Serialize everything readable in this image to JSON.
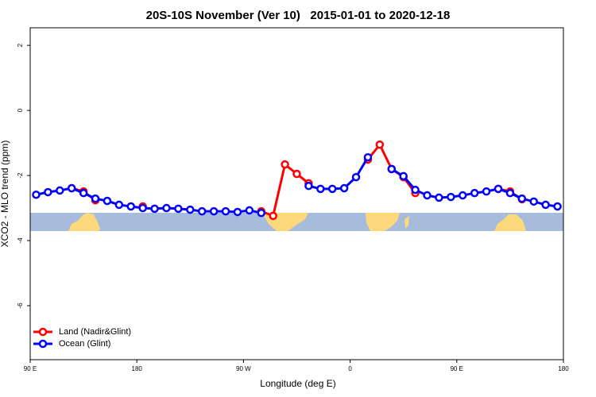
{
  "chart_data": {
    "type": "line",
    "title": "20S-10S November (Ver 10)   2015-01-01 to 2020-12-18",
    "xlabel": "Longitude (deg E)",
    "ylabel": "XCO2 - MLO trend (ppm)",
    "x": [
      95,
      105,
      115,
      125,
      135,
      145,
      155,
      165,
      175,
      185,
      195,
      205,
      215,
      225,
      235,
      245,
      255,
      265,
      275,
      285,
      295,
      305,
      315,
      325,
      335,
      345,
      355,
      365,
      375,
      385,
      395,
      405,
      415,
      425,
      435,
      445,
      455,
      465,
      475,
      485,
      495,
      505,
      515,
      525,
      535
    ],
    "series": [
      {
        "name": "Land (Nadir&Glint)",
        "color": "#ff0000",
        "values": [
          null,
          null,
          null,
          -2.39,
          -2.49,
          -2.76,
          null,
          null,
          null,
          -2.95,
          null,
          null,
          null,
          null,
          null,
          null,
          null,
          null,
          null,
          -3.1,
          -3.24,
          -1.66,
          -1.95,
          -2.24,
          null,
          null,
          null,
          null,
          -1.51,
          -1.05,
          -1.8,
          -2.05,
          -2.54,
          null,
          null,
          null,
          null,
          null,
          null,
          -2.41,
          -2.49,
          -2.73,
          null,
          null,
          null
        ]
      },
      {
        "name": "Ocean (Glint)",
        "color": "#0000ff",
        "values": [
          -2.59,
          -2.51,
          -2.46,
          -2.39,
          -2.54,
          -2.71,
          -2.78,
          -2.9,
          -2.95,
          -3.0,
          -3.02,
          -3.0,
          -3.02,
          -3.05,
          -3.1,
          -3.1,
          -3.1,
          -3.12,
          -3.07,
          -3.15,
          null,
          null,
          null,
          -2.32,
          -2.41,
          -2.41,
          -2.39,
          -2.05,
          -1.44,
          null,
          -1.8,
          -2.02,
          -2.44,
          -2.61,
          -2.68,
          -2.66,
          -2.61,
          -2.54,
          -2.49,
          -2.41,
          -2.54,
          -2.71,
          -2.8,
          -2.9,
          -2.95
        ]
      }
    ],
    "xlim": [
      90,
      540
    ],
    "xticks": [
      {
        "value": 90,
        "label": "90 E"
      },
      180,
      {
        "value": 270,
        "label": "90 W"
      },
      {
        "value": 360,
        "label": "0"
      },
      {
        "value": 450,
        "label": "90 E"
      },
      {
        "value": 540,
        "label": "180"
      }
    ],
    "ylim": [
      -7.66,
      2.54
    ],
    "yticks": [
      -6,
      -4,
      -2,
      0,
      2
    ],
    "legend": "bottomleft"
  }
}
